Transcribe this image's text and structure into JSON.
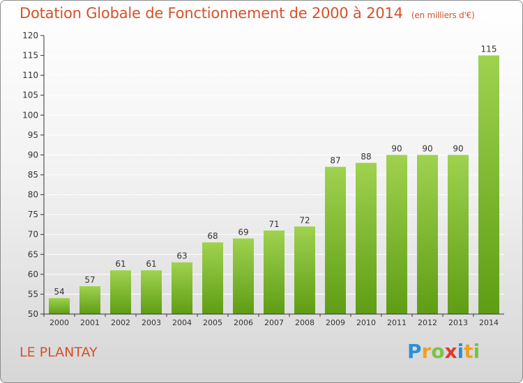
{
  "title": "Dotation Globale de Fonctionnement de 2000 à 2014",
  "subtitle": "(en milliers d'€)",
  "commune": "LE PLANTAY",
  "logo": {
    "letters": [
      {
        "ch": "P",
        "color": "#2e8fd8"
      },
      {
        "ch": "r",
        "color": "#f0a020"
      },
      {
        "ch": "o",
        "color": "#7cc242"
      },
      {
        "ch": "x",
        "color": "#e03a2e"
      },
      {
        "ch": "i",
        "color": "#2e8fd8"
      },
      {
        "ch": "t",
        "color": "#f0a020"
      },
      {
        "ch": "i",
        "color": "#7cc242"
      }
    ]
  },
  "colors": {
    "bar_top": "#9fd24f",
    "bar_bottom": "#5e9d14",
    "title": "#d4512a",
    "axis": "#333333",
    "grid": "#ffffff"
  },
  "chart_data": {
    "type": "bar",
    "categories": [
      "2000",
      "2001",
      "2002",
      "2003",
      "2004",
      "2005",
      "2006",
      "2007",
      "2008",
      "2009",
      "2010",
      "2011",
      "2012",
      "2013",
      "2014"
    ],
    "values": [
      54,
      57,
      61,
      61,
      63,
      68,
      69,
      71,
      72,
      87,
      88,
      90,
      90,
      90,
      115
    ],
    "ylim": [
      50,
      120
    ],
    "yticks": [
      50,
      55,
      60,
      65,
      70,
      75,
      80,
      85,
      90,
      95,
      100,
      105,
      110,
      115,
      120
    ],
    "grid": true
  }
}
